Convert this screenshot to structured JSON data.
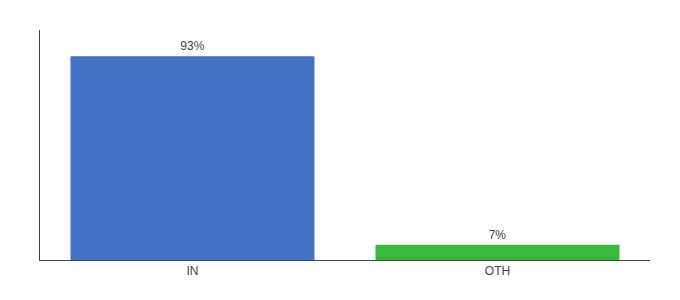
{
  "chart_data": {
    "type": "bar",
    "categories": [
      "IN",
      "OTH"
    ],
    "values": [
      93,
      7
    ],
    "value_labels": [
      "93%",
      "7%"
    ],
    "data_labels": true,
    "colors": [
      "#4472c4",
      "#3cb83c"
    ],
    "ylim": [
      0,
      105
    ],
    "yticks": [],
    "tick_labels": "x",
    "grid": false
  }
}
